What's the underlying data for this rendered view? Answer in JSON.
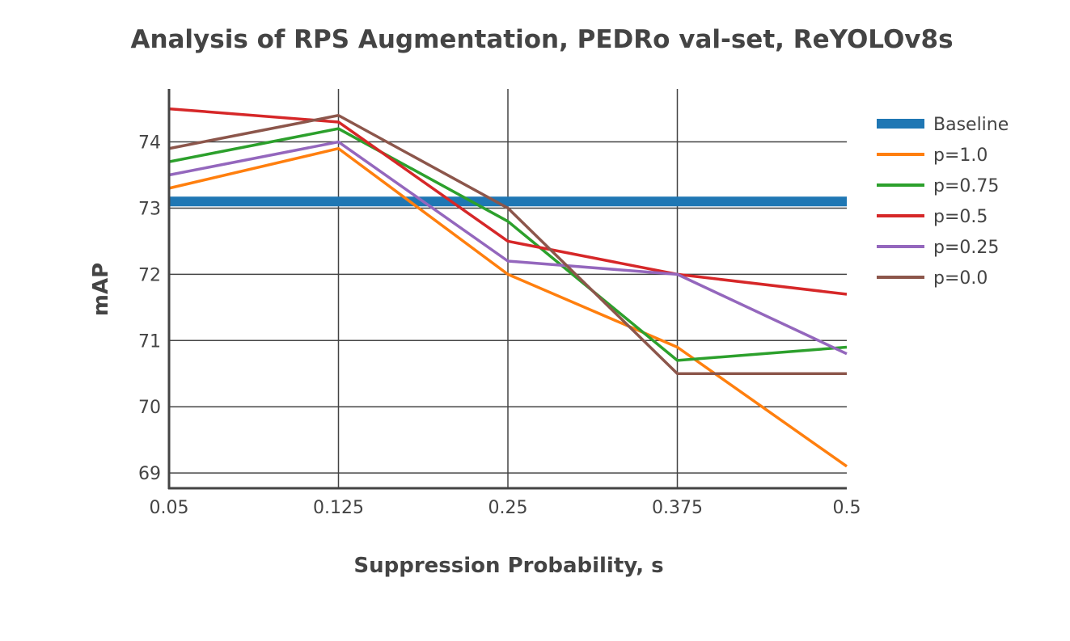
{
  "chart_data": {
    "type": "line",
    "title": "Analysis of RPS Augmentation, PEDRo val-set, ReYOLOv8s",
    "xlabel": "Suppression Probability, s",
    "ylabel": "mAP",
    "categories": [
      "0.05",
      "0.125",
      "0.25",
      "0.375",
      "0.5"
    ],
    "yticks": [
      69,
      70,
      71,
      72,
      73,
      74
    ],
    "ylim": [
      68.77,
      74.8
    ],
    "grid": true,
    "legend_position": "right",
    "baseline": {
      "name": "Baseline",
      "value": 73.1,
      "color": "#1f77b4"
    },
    "series": [
      {
        "name": "p=1.0",
        "color": "#ff7f0e",
        "values": [
          73.3,
          73.9,
          72.0,
          70.9,
          69.1
        ]
      },
      {
        "name": "p=0.75",
        "color": "#2ca02c",
        "values": [
          73.7,
          74.2,
          72.8,
          70.7,
          70.9
        ]
      },
      {
        "name": "p=0.5",
        "color": "#d62728",
        "values": [
          74.5,
          74.3,
          72.5,
          72.0,
          71.7
        ]
      },
      {
        "name": "p=0.25",
        "color": "#9467bd",
        "values": [
          73.5,
          74.0,
          72.2,
          72.0,
          70.8
        ]
      },
      {
        "name": "p=0.0",
        "color": "#8c564b",
        "values": [
          73.9,
          74.4,
          73.0,
          70.5,
          70.5
        ]
      }
    ]
  }
}
